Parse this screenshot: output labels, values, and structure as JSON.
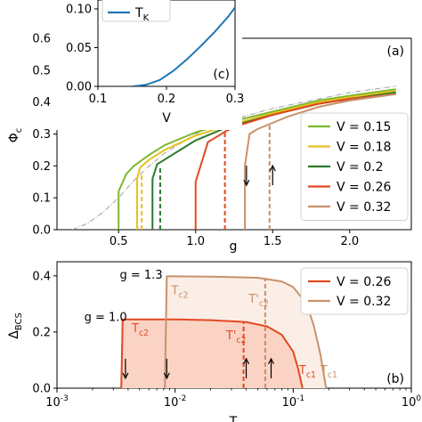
{
  "chart_data": [
    {
      "panel": "(a)",
      "type": "line",
      "xlabel": "g",
      "ylabel": "Φ",
      "ylabel_sub": "c",
      "xlim": [
        0.1,
        2.4
      ],
      "ylim": [
        0,
        0.6
      ],
      "xticks": [
        0.5,
        1.0,
        1.5,
        2.0
      ],
      "xtick_labels": [
        "0.5",
        "1.0",
        "1.5",
        "2.0"
      ],
      "yticks": [
        0,
        0.1,
        0.2,
        0.3,
        0.4,
        0.5,
        0.6
      ],
      "ytick_labels": [
        "0.0",
        "0.1",
        "0.2",
        "0.3",
        "0.4",
        "0.5",
        "0.6"
      ],
      "legend": {
        "position": "lower-right",
        "entries": [
          "V = 0.15",
          "V = 0.18",
          "V = 0.2",
          "V = 0.26",
          "V = 0.32"
        ]
      },
      "reference_curve": {
        "style": "dash-dot",
        "color": "#a0a0a0",
        "x": [
          0.2,
          0.3,
          0.4,
          0.5,
          0.6,
          0.7,
          0.8,
          1.0,
          1.2,
          1.5,
          1.8,
          2.0,
          2.3
        ],
        "y": [
          0.0,
          0.02,
          0.055,
          0.1,
          0.155,
          0.2,
          0.24,
          0.3,
          0.34,
          0.38,
          0.41,
          0.43,
          0.45
        ]
      },
      "series": [
        {
          "name": "V = 0.15",
          "color": "#7cb82f",
          "jump_x": 0.5,
          "jump_up": 0.12,
          "x": [
            0.55,
            0.6,
            0.7,
            0.8,
            1.0,
            1.2,
            1.5,
            1.8,
            2.0,
            2.3
          ],
          "y": [
            0.175,
            0.2,
            0.235,
            0.265,
            0.305,
            0.335,
            0.37,
            0.405,
            0.42,
            0.44
          ]
        },
        {
          "name": "V = 0.18",
          "color": "#e8c020",
          "jump_x": 0.62,
          "jump_up": 0.16,
          "dashed_x": 0.65,
          "dashed_top": 0.18,
          "x": [
            0.64,
            0.7,
            0.8,
            1.0,
            1.2,
            1.5,
            1.8,
            2.0,
            2.3
          ],
          "y": [
            0.195,
            0.22,
            0.25,
            0.295,
            0.325,
            0.365,
            0.4,
            0.415,
            0.435
          ]
        },
        {
          "name": "V = 0.2",
          "color": "#2a7a2a",
          "jump_x": 0.72,
          "jump_up": 0.16,
          "dashed_x": 0.77,
          "dashed_top": 0.2,
          "x": [
            0.75,
            0.8,
            0.9,
            1.0,
            1.2,
            1.5,
            1.8,
            2.0,
            2.3
          ],
          "y": [
            0.205,
            0.22,
            0.25,
            0.28,
            0.32,
            0.36,
            0.395,
            0.41,
            0.43
          ]
        },
        {
          "name": "V = 0.26",
          "color": "#e04a20",
          "jump_x": 1.0,
          "jump_up": 0.15,
          "dashed_x": 1.19,
          "dashed_top": 0.305,
          "x": [
            1.08,
            1.15,
            1.2,
            1.3,
            1.5,
            1.8,
            2.0,
            2.3
          ],
          "y": [
            0.275,
            0.295,
            0.31,
            0.33,
            0.36,
            0.395,
            0.41,
            0.425
          ]
        },
        {
          "name": "V = 0.32",
          "color": "#c8916a",
          "jump_x": 1.32,
          "jump_up": 0.2,
          "dashed_x": 1.48,
          "dashed_top": 0.335,
          "x": [
            1.35,
            1.4,
            1.5,
            1.6,
            1.8,
            2.0,
            2.3
          ],
          "y": [
            0.3,
            0.315,
            0.335,
            0.355,
            0.385,
            0.405,
            0.425
          ]
        }
      ],
      "arrows": [
        {
          "x": 1.33,
          "y": 0.17,
          "direction": "down"
        },
        {
          "x": 1.5,
          "y": 0.17,
          "direction": "up"
        }
      ]
    },
    {
      "panel": "(c)",
      "type": "line",
      "inset": true,
      "xlabel": "V",
      "xlim": [
        0.1,
        0.3
      ],
      "ylim": [
        0,
        0.1
      ],
      "xticks": [
        0.1,
        0.2,
        0.3
      ],
      "xtick_labels": [
        "0.1",
        "0.2",
        "0.3"
      ],
      "yticks": [
        0,
        0.05,
        0.1
      ],
      "ytick_labels": [
        "0.00",
        "0.05",
        "0.10"
      ],
      "legend": {
        "position": "top-left",
        "entries": [
          "T"
        ],
        "entry_sub": "K"
      },
      "series": [
        {
          "name": "T_K",
          "color": "#1f77b4",
          "x": [
            0.15,
            0.17,
            0.19,
            0.21,
            0.23,
            0.25,
            0.27,
            0.29,
            0.3
          ],
          "y": [
            0.0,
            0.002,
            0.008,
            0.02,
            0.035,
            0.052,
            0.07,
            0.09,
            0.102
          ]
        }
      ]
    },
    {
      "panel": "(b)",
      "type": "area",
      "xlabel": "T",
      "xscale": "log",
      "ylabel": "Δ",
      "ylabel_sub": "BCS",
      "xlim": [
        0.001,
        1.0
      ],
      "ylim": [
        0,
        0.45
      ],
      "xticks": [
        0.001,
        0.01,
        0.1,
        1.0
      ],
      "xtick_base": "10",
      "xtick_exponents": [
        "-3",
        "-2",
        "-1",
        "0"
      ],
      "yticks": [
        0,
        0.2,
        0.4
      ],
      "ytick_labels": [
        "0.0",
        "0.2",
        "0.4"
      ],
      "legend": {
        "position": "top-right",
        "entries": [
          "V = 0.26",
          "V = 0.32"
        ]
      },
      "series": [
        {
          "name": "V = 0.26",
          "color": "#e04a20",
          "fill": "#fbd3c4",
          "x": [
            0.0036,
            0.005,
            0.01,
            0.02,
            0.04,
            0.06,
            0.08,
            0.1,
            0.11,
            0.12
          ],
          "y": [
            0.245,
            0.245,
            0.245,
            0.242,
            0.235,
            0.22,
            0.19,
            0.13,
            0.07,
            0.0
          ],
          "start_x": 0.0035,
          "dashed_x": 0.038,
          "dashed_top": 0.235
        },
        {
          "name": "V = 0.32",
          "color": "#c8916a",
          "fill": "#fbeee6",
          "x": [
            0.0085,
            0.01,
            0.02,
            0.05,
            0.08,
            0.1,
            0.13,
            0.15,
            0.17,
            0.19
          ],
          "y": [
            0.398,
            0.398,
            0.397,
            0.393,
            0.38,
            0.36,
            0.3,
            0.22,
            0.12,
            0.0
          ],
          "start_x": 0.0082,
          "dashed_x": 0.058,
          "dashed_top": 0.39
        }
      ],
      "annotations": [
        {
          "text": "g = 1.3",
          "x": 0.0034,
          "y": 0.39
        },
        {
          "text": "g = 1.0",
          "x": 0.0017,
          "y": 0.24
        },
        {
          "text": "T",
          "sub": "c2",
          "x": 0.0043,
          "y": 0.2,
          "color": "#e04a20"
        },
        {
          "text": "T",
          "sub": "c2",
          "x": 0.0093,
          "y": 0.335,
          "color": "#c8916a"
        },
        {
          "text": "T'",
          "sub": "c2",
          "x": 0.027,
          "y": 0.175,
          "color": "#e04a20"
        },
        {
          "text": "T'",
          "sub": "c2",
          "x": 0.042,
          "y": 0.305,
          "color": "#c8916a"
        },
        {
          "text": "T",
          "sub": "c1",
          "x": 0.112,
          "y": 0.05,
          "color": "#e04a20"
        },
        {
          "text": "T",
          "sub": "c1",
          "x": 0.17,
          "y": 0.05,
          "color": "#c8916a"
        }
      ],
      "arrows": [
        {
          "x": 0.0038,
          "y": 0.07,
          "direction": "down"
        },
        {
          "x": 0.0085,
          "y": 0.07,
          "direction": "down"
        },
        {
          "x": 0.04,
          "y": 0.07,
          "direction": "up"
        },
        {
          "x": 0.065,
          "y": 0.07,
          "direction": "up"
        }
      ]
    }
  ]
}
